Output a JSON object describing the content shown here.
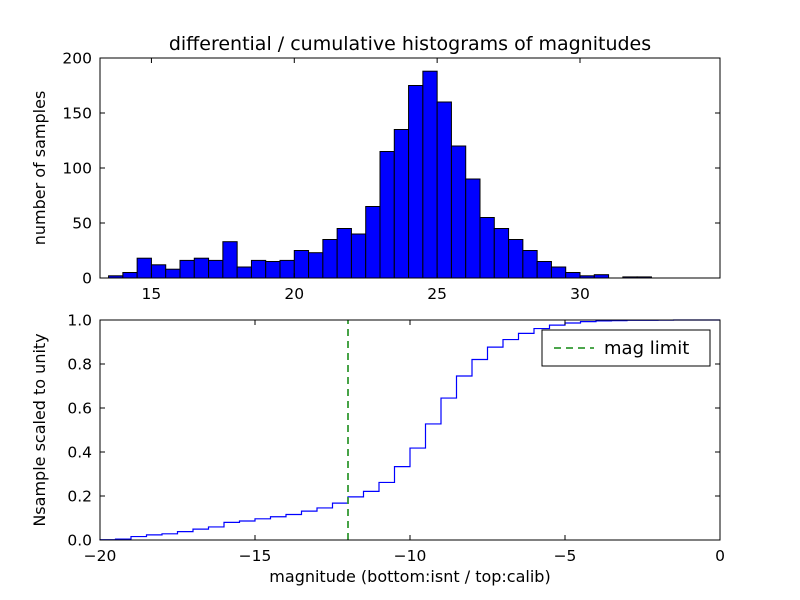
{
  "figure": {
    "title": "differential / cumulative histograms of magnitudes",
    "background": "#ffffff"
  },
  "chart_data": [
    {
      "type": "bar",
      "name": "differential-histogram",
      "title": "differential / cumulative histograms of magnitudes",
      "xlabel": "",
      "ylabel": "number of samples",
      "bar_color": "#0000ff",
      "bar_edge_color": "#000000",
      "grid": false,
      "xlim": [
        13.2,
        34.9
      ],
      "ylim": [
        0,
        200
      ],
      "xticks": [
        15,
        20,
        25,
        30
      ],
      "xtick_labels": [
        "15",
        "20",
        "25",
        "30"
      ],
      "yticks": [
        0,
        50,
        100,
        150,
        200
      ],
      "ytick_labels": [
        "0",
        "50",
        "100",
        "150",
        "200"
      ],
      "bin_start": 13.5,
      "bin_width": 0.5,
      "values": [
        2,
        5,
        18,
        12,
        8,
        16,
        18,
        16,
        33,
        10,
        16,
        15,
        16,
        25,
        23,
        35,
        45,
        40,
        65,
        115,
        135,
        175,
        188,
        160,
        120,
        90,
        55,
        45,
        35,
        25,
        15,
        10,
        5,
        2,
        3,
        0,
        1,
        1
      ]
    },
    {
      "type": "line",
      "name": "cumulative-histogram",
      "subtype": "cumulative-step",
      "derived_from": "cumulative sum of top histogram scaled to unity",
      "xlabel": "magnitude (bottom:isnt / top:calib)",
      "ylabel": "Nsample scaled to unity",
      "line_color": "#0000ff",
      "grid": false,
      "xlim": [
        -20,
        0
      ],
      "ylim": [
        0,
        1
      ],
      "xticks": [
        -20,
        -15,
        -10,
        -5,
        0
      ],
      "xtick_labels": [
        "−20",
        "−15",
        "−10",
        "−5",
        "0"
      ],
      "yticks": [
        0,
        0.2,
        0.4,
        0.6,
        0.8,
        1.0
      ],
      "ytick_labels": [
        "0.0",
        "0.2",
        "0.4",
        "0.6",
        "0.8",
        "1.0"
      ],
      "offset_from_calib": -33.5,
      "mag_limit": {
        "x": -12,
        "color": "#339933",
        "style": "dashed",
        "label": "mag limit"
      },
      "legend": {
        "position": "upper right",
        "entries": [
          {
            "label": "mag limit",
            "color": "#339933",
            "dash": true
          }
        ]
      }
    }
  ]
}
